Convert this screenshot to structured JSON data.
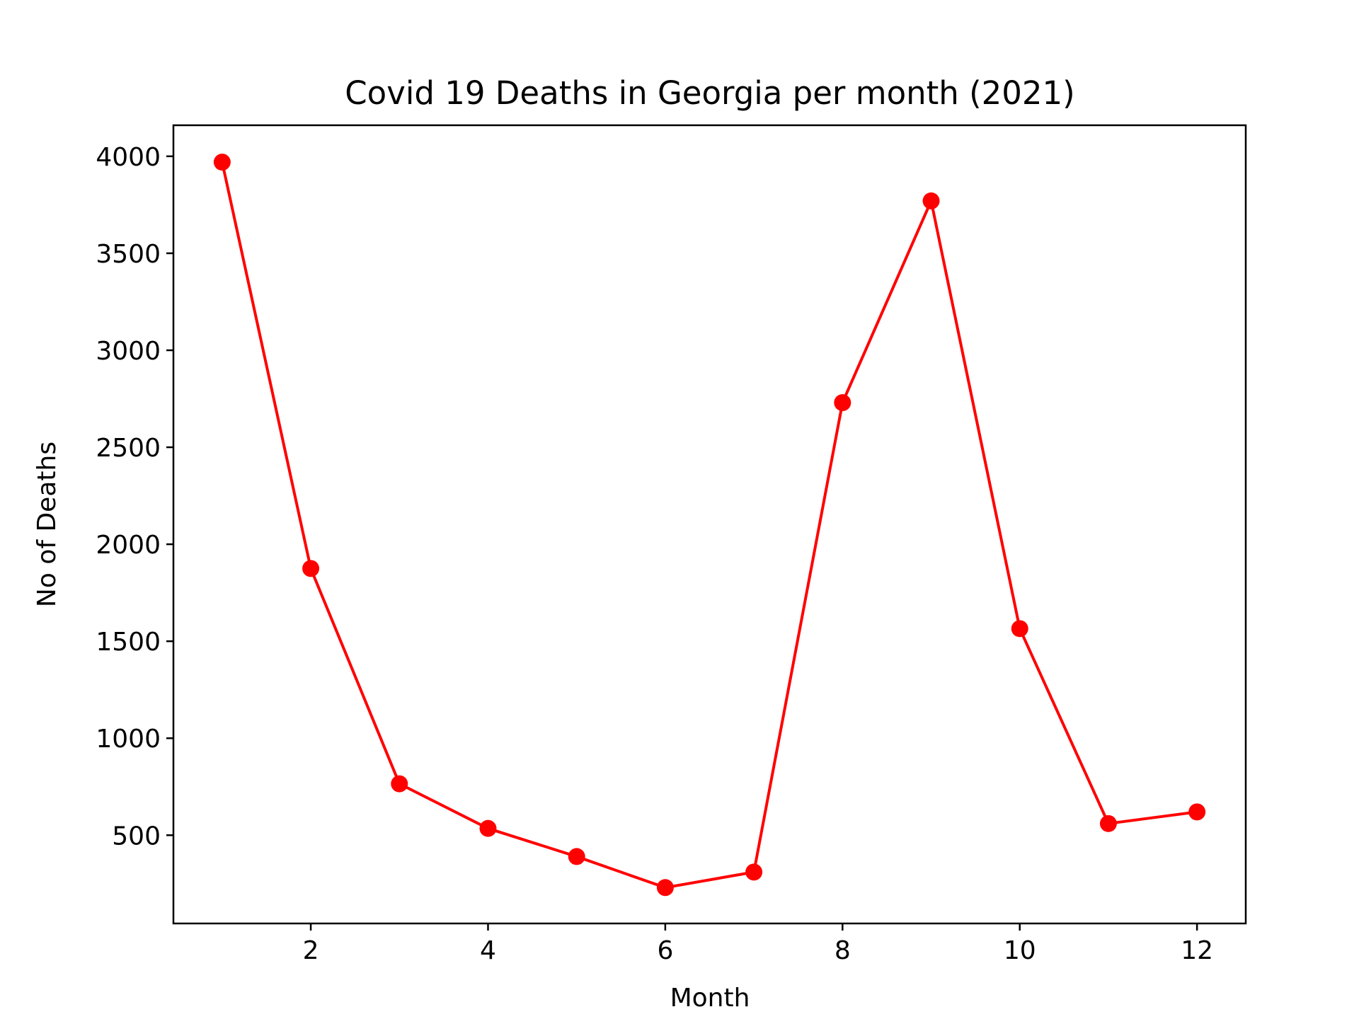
{
  "chart_data": {
    "type": "line",
    "title": "Covid 19 Deaths in Georgia per month (2021)",
    "xlabel": "Month",
    "ylabel": "No of Deaths",
    "x": [
      1,
      2,
      3,
      4,
      5,
      6,
      7,
      8,
      9,
      10,
      11,
      12
    ],
    "series": [
      {
        "values": [
          3970,
          1875,
          765,
          535,
          390,
          230,
          310,
          2730,
          3770,
          1565,
          560,
          620
        ],
        "color": "#ff0000"
      }
    ],
    "xlim": [
      0.45,
      12.55
    ],
    "ylim": [
      45,
      4160
    ],
    "xticks": [
      2,
      4,
      6,
      8,
      10,
      12
    ],
    "yticks": [
      500,
      1000,
      1500,
      2000,
      2500,
      3000,
      3500,
      4000
    ],
    "grid": false,
    "markers": "circle"
  }
}
